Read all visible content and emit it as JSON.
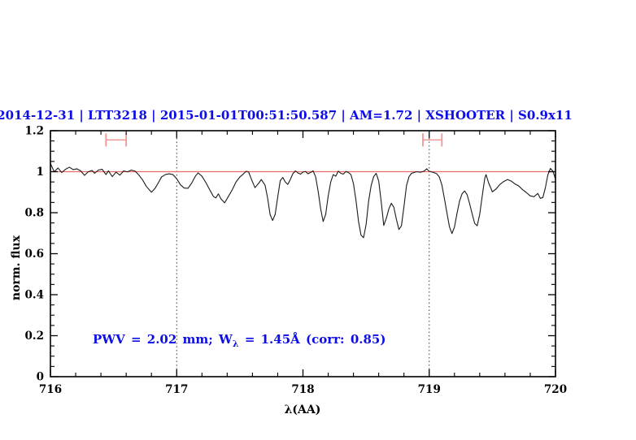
{
  "colors": {
    "background": "#ffffff",
    "title_blue": "#0d0de8",
    "annotation_blue": "#0d0de8",
    "reference_line_red": "#ee6a6a",
    "range_marker_red": "#f29595",
    "spectrum_black": "#1b1b1b",
    "axis_black": "#000000",
    "dotted_guide": "#3a3a3a"
  },
  "annotation": {
    "pre": "PWV = 2.02 mm; W",
    "sub": "λ",
    "post": " = 1.45Å (corr: 0.85)",
    "full_text": "PWV = 2.02 mm; W_λ = 1.45Å (corr: 0.85)"
  },
  "chart_data": {
    "type": "line",
    "title": "2014-12-31 | LTT3218 | 2015-01-01T00:51:50.587 | AM=1.72 | XSHOOTER | S0.9x11",
    "xlabel": "λ(AA)",
    "ylabel": "norm. flux",
    "xlim": [
      716,
      720
    ],
    "ylim": [
      0,
      1.2
    ],
    "grid": "off",
    "frame": "box-with-inward-ticks",
    "x_major_ticks": [
      716,
      717,
      718,
      719,
      720
    ],
    "x_tick_labels": [
      "716",
      "717",
      "718",
      "719",
      "720"
    ],
    "x_minor_tick_step": 0.2,
    "y_major_ticks": [
      0,
      0.2,
      0.4,
      0.6,
      0.8,
      1,
      1.2
    ],
    "y_tick_labels": [
      "0",
      "0.2",
      "0.4",
      "0.6",
      "0.8",
      "1",
      "1.2"
    ],
    "y_minor_tick_step": 0.05,
    "reference_line": {
      "y": 1.0,
      "style": "solid"
    },
    "dotted_vertical_lines": [
      717,
      719
    ],
    "range_markers": [
      {
        "x_start": 716.44,
        "x_end": 716.6,
        "y": 1.155,
        "cap_half_height": 0.032
      },
      {
        "x_start": 718.95,
        "x_end": 719.1,
        "y": 1.155,
        "cap_half_height": 0.032
      }
    ],
    "series": [
      {
        "name": "normalized telluric spectrum",
        "points": [
          [
            716.0,
            1.04
          ],
          [
            716.03,
            1.0
          ],
          [
            716.06,
            1.018
          ],
          [
            716.09,
            0.996
          ],
          [
            716.12,
            1.012
          ],
          [
            716.15,
            1.022
          ],
          [
            716.18,
            1.01
          ],
          [
            716.21,
            1.014
          ],
          [
            716.24,
            1.004
          ],
          [
            716.27,
            0.982
          ],
          [
            716.3,
            1.0
          ],
          [
            716.33,
            1.006
          ],
          [
            716.35,
            0.992
          ],
          [
            716.38,
            1.008
          ],
          [
            716.41,
            1.012
          ],
          [
            716.44,
            0.986
          ],
          [
            716.46,
            1.004
          ],
          [
            716.49,
            0.976
          ],
          [
            716.52,
            0.998
          ],
          [
            716.55,
            0.983
          ],
          [
            716.58,
            1.004
          ],
          [
            716.61,
            0.999
          ],
          [
            716.64,
            1.008
          ],
          [
            716.67,
            1.003
          ],
          [
            716.7,
            0.984
          ],
          [
            716.73,
            0.96
          ],
          [
            716.76,
            0.928
          ],
          [
            716.8,
            0.9
          ],
          [
            716.83,
            0.92
          ],
          [
            716.86,
            0.952
          ],
          [
            716.88,
            0.974
          ],
          [
            716.91,
            0.986
          ],
          [
            716.94,
            0.99
          ],
          [
            716.97,
            0.986
          ],
          [
            717.0,
            0.966
          ],
          [
            717.03,
            0.936
          ],
          [
            717.06,
            0.92
          ],
          [
            717.09,
            0.919
          ],
          [
            717.12,
            0.946
          ],
          [
            717.15,
            0.98
          ],
          [
            717.17,
            0.994
          ],
          [
            717.2,
            0.978
          ],
          [
            717.23,
            0.948
          ],
          [
            717.26,
            0.914
          ],
          [
            717.29,
            0.88
          ],
          [
            717.31,
            0.872
          ],
          [
            717.33,
            0.892
          ],
          [
            717.35,
            0.868
          ],
          [
            717.38,
            0.848
          ],
          [
            717.41,
            0.88
          ],
          [
            717.44,
            0.912
          ],
          [
            717.47,
            0.95
          ],
          [
            717.5,
            0.974
          ],
          [
            717.53,
            0.99
          ],
          [
            717.55,
            1.002
          ],
          [
            717.57,
            0.998
          ],
          [
            717.59,
            0.966
          ],
          [
            717.62,
            0.922
          ],
          [
            717.65,
            0.944
          ],
          [
            717.67,
            0.962
          ],
          [
            717.7,
            0.934
          ],
          [
            717.72,
            0.872
          ],
          [
            717.74,
            0.79
          ],
          [
            717.76,
            0.762
          ],
          [
            717.78,
            0.792
          ],
          [
            717.8,
            0.876
          ],
          [
            717.82,
            0.956
          ],
          [
            717.84,
            0.972
          ],
          [
            717.86,
            0.95
          ],
          [
            717.88,
            0.938
          ],
          [
            717.9,
            0.962
          ],
          [
            717.92,
            0.99
          ],
          [
            717.94,
            1.004
          ],
          [
            717.96,
            0.994
          ],
          [
            717.98,
            0.988
          ],
          [
            718.0,
            0.998
          ],
          [
            718.02,
            1.001
          ],
          [
            718.04,
            0.99
          ],
          [
            718.06,
            0.996
          ],
          [
            718.08,
            1.004
          ],
          [
            718.1,
            0.976
          ],
          [
            718.12,
            0.906
          ],
          [
            718.14,
            0.82
          ],
          [
            718.16,
            0.757
          ],
          [
            718.18,
            0.792
          ],
          [
            718.2,
            0.882
          ],
          [
            718.22,
            0.95
          ],
          [
            718.24,
            0.986
          ],
          [
            718.26,
            0.978
          ],
          [
            718.28,
            1.003
          ],
          [
            718.3,
            0.992
          ],
          [
            718.32,
            0.988
          ],
          [
            718.34,
            1.001
          ],
          [
            718.36,
            0.996
          ],
          [
            718.38,
            0.986
          ],
          [
            718.4,
            0.942
          ],
          [
            718.42,
            0.86
          ],
          [
            718.44,
            0.758
          ],
          [
            718.46,
            0.69
          ],
          [
            718.48,
            0.678
          ],
          [
            718.5,
            0.742
          ],
          [
            718.52,
            0.856
          ],
          [
            718.54,
            0.932
          ],
          [
            718.56,
            0.976
          ],
          [
            718.58,
            0.992
          ],
          [
            718.6,
            0.954
          ],
          [
            718.62,
            0.852
          ],
          [
            718.64,
            0.738
          ],
          [
            718.66,
            0.772
          ],
          [
            718.68,
            0.818
          ],
          [
            718.7,
            0.846
          ],
          [
            718.72,
            0.826
          ],
          [
            718.74,
            0.768
          ],
          [
            718.76,
            0.718
          ],
          [
            718.78,
            0.736
          ],
          [
            718.8,
            0.83
          ],
          [
            718.82,
            0.932
          ],
          [
            718.84,
            0.976
          ],
          [
            718.86,
            0.992
          ],
          [
            718.88,
            0.996
          ],
          [
            718.9,
            1.0
          ],
          [
            718.93,
            0.997
          ],
          [
            718.96,
            1.003
          ],
          [
            718.98,
            1.014
          ],
          [
            719.0,
            1.002
          ],
          [
            719.03,
            0.997
          ],
          [
            719.06,
            0.99
          ],
          [
            719.08,
            0.974
          ],
          [
            719.1,
            0.936
          ],
          [
            719.12,
            0.87
          ],
          [
            719.14,
            0.8
          ],
          [
            719.16,
            0.732
          ],
          [
            719.18,
            0.698
          ],
          [
            719.2,
            0.73
          ],
          [
            719.22,
            0.796
          ],
          [
            719.24,
            0.856
          ],
          [
            719.26,
            0.892
          ],
          [
            719.28,
            0.906
          ],
          [
            719.3,
            0.888
          ],
          [
            719.32,
            0.844
          ],
          [
            719.34,
            0.794
          ],
          [
            719.36,
            0.748
          ],
          [
            719.38,
            0.736
          ],
          [
            719.4,
            0.792
          ],
          [
            719.42,
            0.882
          ],
          [
            719.44,
            0.968
          ],
          [
            719.45,
            0.986
          ],
          [
            719.47,
            0.946
          ],
          [
            719.5,
            0.902
          ],
          [
            719.53,
            0.916
          ],
          [
            719.56,
            0.938
          ],
          [
            719.59,
            0.952
          ],
          [
            719.62,
            0.962
          ],
          [
            719.65,
            0.954
          ],
          [
            719.68,
            0.94
          ],
          [
            719.71,
            0.93
          ],
          [
            719.74,
            0.912
          ],
          [
            719.77,
            0.898
          ],
          [
            719.8,
            0.882
          ],
          [
            719.83,
            0.878
          ],
          [
            719.86,
            0.894
          ],
          [
            719.88,
            0.87
          ],
          [
            719.9,
            0.874
          ],
          [
            719.92,
            0.922
          ],
          [
            719.94,
            0.986
          ],
          [
            719.96,
            1.016
          ],
          [
            719.98,
            1.002
          ],
          [
            720.0,
            0.964
          ]
        ]
      }
    ]
  }
}
